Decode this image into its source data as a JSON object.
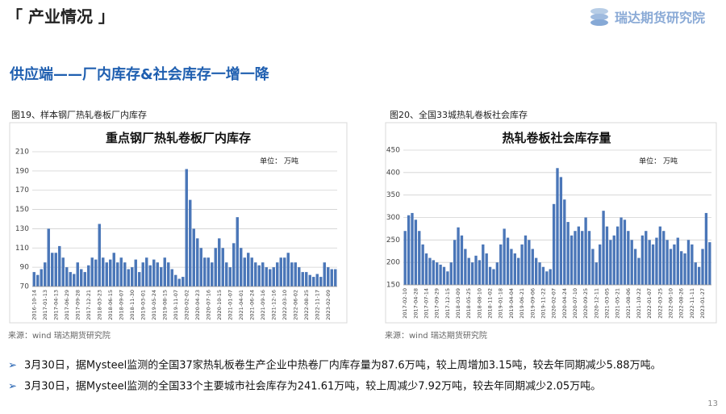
{
  "header": {
    "title": "「 产业情况 」",
    "logo": "瑞达期货研究院"
  },
  "heading": "供应端——厂内库存&社会库存一增一降",
  "figures": [
    {
      "caption": "图19、样本钢厂热轧卷板厂内库存",
      "source": "来源：wind   瑞达期货研究院"
    },
    {
      "caption": "图20、全国33城热轧卷板社会库存",
      "source": "来源：wind   瑞达期货研究院"
    }
  ],
  "chart_data": [
    {
      "type": "bar",
      "title": "重点钢厂热轧卷板厂内库存",
      "unit": "单位： 万吨",
      "color": "#4a76b8",
      "grid": true,
      "ylim": [
        70,
        210
      ],
      "yticks": [
        70,
        90,
        110,
        130,
        150,
        170,
        190,
        210
      ],
      "categories": [
        "2016-10-14",
        null,
        null,
        "2017-01-13",
        null,
        null,
        "2017-04-13",
        null,
        null,
        "2017-06-29",
        null,
        null,
        "2017-09-28",
        null,
        null,
        "2017-12-21",
        null,
        null,
        "2018-03-23",
        null,
        null,
        "2018-06-15",
        null,
        null,
        "2018-09-07",
        null,
        null,
        "2018-11-30",
        null,
        null,
        "2019-03-01",
        null,
        null,
        "2019-05-24",
        null,
        null,
        "2019-08-15",
        null,
        null,
        "2019-11-07",
        null,
        null,
        "2020-02-02",
        null,
        null,
        "2020-04-23",
        null,
        null,
        "2020-07-16",
        null,
        null,
        "2020-10-15",
        null,
        null,
        "2021-01-07",
        null,
        null,
        "2021-04-01",
        null,
        null,
        "2021-06-24",
        null,
        null,
        "2021-09-16",
        null,
        null,
        "2021-12-16",
        null,
        null,
        "2022-03-10",
        null,
        null,
        "2022-06-02",
        null,
        null,
        "2022-08-25",
        null,
        null,
        "2022-11-17",
        null,
        null,
        "2023-02-09",
        null,
        null
      ],
      "values": [
        85,
        82,
        88,
        95,
        130,
        105,
        105,
        112,
        100,
        90,
        85,
        83,
        95,
        88,
        85,
        92,
        100,
        98,
        135,
        100,
        95,
        98,
        105,
        95,
        100,
        95,
        88,
        90,
        98,
        85,
        95,
        100,
        92,
        98,
        95,
        90,
        100,
        95,
        88,
        82,
        78,
        80,
        192,
        160,
        130,
        120,
        110,
        100,
        100,
        95,
        110,
        120,
        110,
        95,
        90,
        115,
        142,
        110,
        100,
        105,
        100,
        95,
        92,
        95,
        90,
        88,
        90,
        95,
        100,
        100,
        105,
        95,
        95,
        90,
        85,
        85,
        82,
        80,
        83,
        80,
        95,
        90,
        88,
        88
      ]
    },
    {
      "type": "bar",
      "title": "热轧卷板社会库存量",
      "unit": "单位： 万吨",
      "color": "#4a76b8",
      "grid": true,
      "ylim": [
        150,
        450
      ],
      "yticks": [
        150,
        200,
        250,
        300,
        350,
        400,
        450
      ],
      "categories": [
        "2017-02-10",
        null,
        null,
        "2017-04-28",
        null,
        null,
        "2017-07-14",
        null,
        null,
        "2017-09-29",
        null,
        null,
        "2017-12-15",
        null,
        null,
        "2018-03-09",
        null,
        null,
        "2018-05-25",
        null,
        null,
        "2018-08-10",
        null,
        null,
        "2018-11-02",
        null,
        null,
        "2019-01-18",
        null,
        null,
        "2019-04-04",
        null,
        null,
        "2019-06-21",
        null,
        null,
        "2019-09-06",
        null,
        null,
        "2019-11-22",
        null,
        null,
        "2020-02-07",
        null,
        null,
        "2020-04-24",
        null,
        null,
        "2020-07-10",
        null,
        null,
        "2020-09-25",
        null,
        null,
        "2020-12-11",
        null,
        null,
        "2021-03-05",
        null,
        null,
        "2021-05-21",
        null,
        null,
        "2021-08-06",
        null,
        null,
        "2021-10-22",
        null,
        null,
        "2022-01-07",
        null,
        null,
        "2022-03-25",
        null,
        null,
        "2022-06-10",
        null,
        null,
        "2022-08-26",
        null,
        null,
        "2022-11-11",
        null,
        null,
        "2023-01-27",
        null,
        null
      ],
      "values": [
        270,
        305,
        310,
        295,
        270,
        240,
        220,
        210,
        205,
        200,
        195,
        190,
        180,
        200,
        250,
        278,
        260,
        230,
        210,
        200,
        215,
        205,
        240,
        220,
        190,
        185,
        200,
        240,
        275,
        255,
        230,
        220,
        210,
        240,
        260,
        250,
        230,
        210,
        200,
        190,
        180,
        185,
        330,
        410,
        390,
        340,
        290,
        260,
        270,
        280,
        270,
        300,
        270,
        230,
        200,
        240,
        315,
        280,
        250,
        260,
        280,
        300,
        295,
        270,
        250,
        230,
        210,
        260,
        270,
        250,
        240,
        255,
        280,
        270,
        250,
        230,
        240,
        255,
        225,
        220,
        250,
        240,
        200,
        190,
        230,
        310,
        245
      ]
    }
  ],
  "bullets": [
    "3月30日，据Mysteel监测的全国37家热轧板卷生产企业中热卷厂内库存量为87.6万吨，较上周增加3.15吨，较去年同期减少5.88万吨。",
    "3月30日，据Mysteel监测的全国33个主要城市社会库存为241.61万吨，较上周减少7.92万吨，较去年同期减少2.05万吨。"
  ],
  "page_number": "13"
}
